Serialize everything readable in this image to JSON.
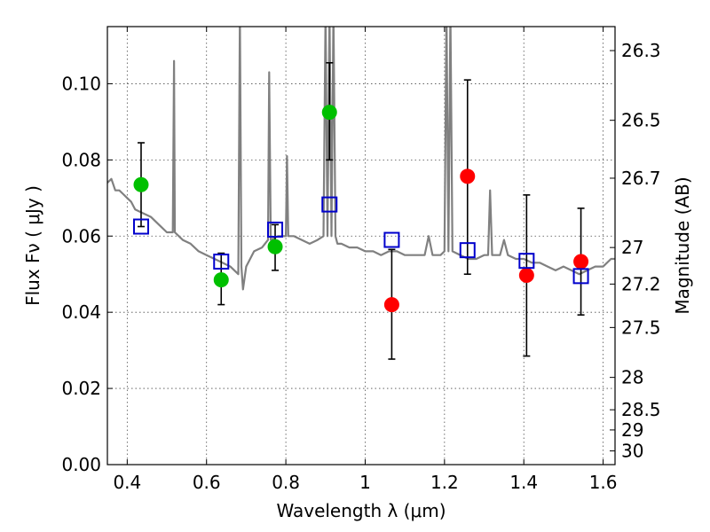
{
  "chart_data": {
    "type": "scatter",
    "title": "",
    "xlabel": "Wavelength  λ (μm)",
    "ylabel": "Flux  Fν  ( μJy )",
    "y2label": "Magnitude (AB)",
    "xlim": [
      0.35,
      1.63
    ],
    "ylim": [
      0.0,
      0.115
    ],
    "grid": true,
    "x_ticks": [
      0.4,
      0.6,
      0.8,
      1.0,
      1.2,
      1.4,
      1.6
    ],
    "x_tick_labels": [
      "0.4",
      "0.6",
      "0.8",
      "1",
      "1.2",
      "1.4",
      "1.6"
    ],
    "y_ticks": [
      0.0,
      0.02,
      0.04,
      0.06,
      0.08,
      0.1
    ],
    "y_tick_labels": [
      "0.00",
      "0.02",
      "0.04",
      "0.06",
      "0.08",
      "0.10"
    ],
    "y2_ticks": [
      {
        "label": "26.3",
        "flux": 0.1087
      },
      {
        "label": "26.5",
        "flux": 0.0904
      },
      {
        "label": "26.7",
        "flux": 0.0752
      },
      {
        "label": "27",
        "flux": 0.057
      },
      {
        "label": "27.2",
        "flux": 0.0474
      },
      {
        "label": "27.5",
        "flux": 0.036
      },
      {
        "label": "28",
        "flux": 0.0229
      },
      {
        "label": "28.5",
        "flux": 0.0144
      },
      {
        "label": "29",
        "flux": 0.0091
      },
      {
        "label": "30",
        "flux": 0.0036
      }
    ],
    "series": [
      {
        "marker": "circle",
        "color": "#00c000",
        "points": [
          {
            "x": 0.435,
            "y": 0.0735,
            "ylo": 0.0625,
            "yhi": 0.0845
          },
          {
            "x": 0.637,
            "y": 0.0485,
            "ylo": 0.042,
            "yhi": 0.0555
          },
          {
            "x": 0.773,
            "y": 0.0572,
            "ylo": 0.051,
            "yhi": 0.063
          },
          {
            "x": 0.91,
            "y": 0.0925,
            "ylo": 0.08,
            "yhi": 0.1055
          }
        ]
      },
      {
        "marker": "circle",
        "color": "#ff0000",
        "points": [
          {
            "x": 1.067,
            "y": 0.042,
            "ylo": 0.0277,
            "yhi": 0.0565
          },
          {
            "x": 1.258,
            "y": 0.0757,
            "ylo": 0.05,
            "yhi": 0.101
          },
          {
            "x": 1.407,
            "y": 0.0497,
            "ylo": 0.0285,
            "yhi": 0.0708
          },
          {
            "x": 1.544,
            "y": 0.0533,
            "ylo": 0.0393,
            "yhi": 0.0673
          }
        ]
      },
      {
        "marker": "open-square",
        "color": "#0000cc",
        "points": [
          {
            "x": 0.435,
            "y": 0.0625
          },
          {
            "x": 0.637,
            "y": 0.0533
          },
          {
            "x": 0.773,
            "y": 0.0617
          },
          {
            "x": 0.91,
            "y": 0.0683
          },
          {
            "x": 1.067,
            "y": 0.059
          },
          {
            "x": 1.258,
            "y": 0.0563
          },
          {
            "x": 1.407,
            "y": 0.0535
          },
          {
            "x": 1.544,
            "y": 0.0495
          }
        ]
      }
    ],
    "model_spectrum": {
      "color": "#808080",
      "x": [
        0.35,
        0.36,
        0.37,
        0.38,
        0.39,
        0.4,
        0.41,
        0.42,
        0.44,
        0.46,
        0.48,
        0.5,
        0.515,
        0.518,
        0.52,
        0.54,
        0.56,
        0.58,
        0.6,
        0.62,
        0.64,
        0.66,
        0.68,
        0.684,
        0.688,
        0.692,
        0.7,
        0.72,
        0.74,
        0.755,
        0.758,
        0.762,
        0.78,
        0.8,
        0.803,
        0.806,
        0.82,
        0.84,
        0.86,
        0.88,
        0.895,
        0.9,
        0.905,
        0.91,
        0.915,
        0.92,
        0.925,
        0.93,
        0.94,
        0.96,
        0.98,
        1.0,
        1.02,
        1.04,
        1.06,
        1.08,
        1.1,
        1.12,
        1.15,
        1.16,
        1.17,
        1.19,
        1.2,
        1.205,
        1.21,
        1.215,
        1.22,
        1.24,
        1.26,
        1.28,
        1.3,
        1.31,
        1.315,
        1.32,
        1.34,
        1.35,
        1.36,
        1.38,
        1.4,
        1.42,
        1.44,
        1.46,
        1.48,
        1.5,
        1.52,
        1.54,
        1.56,
        1.58,
        1.6,
        1.62,
        1.63
      ],
      "y": [
        0.074,
        0.075,
        0.072,
        0.072,
        0.071,
        0.07,
        0.069,
        0.067,
        0.066,
        0.065,
        0.063,
        0.061,
        0.061,
        0.106,
        0.061,
        0.059,
        0.058,
        0.056,
        0.055,
        0.054,
        0.053,
        0.052,
        0.05,
        0.119,
        0.052,
        0.046,
        0.052,
        0.056,
        0.057,
        0.059,
        0.103,
        0.059,
        0.06,
        0.06,
        0.081,
        0.06,
        0.06,
        0.059,
        0.058,
        0.059,
        0.06,
        0.119,
        0.06,
        0.119,
        0.06,
        0.119,
        0.06,
        0.058,
        0.058,
        0.057,
        0.057,
        0.056,
        0.056,
        0.055,
        0.056,
        0.056,
        0.055,
        0.055,
        0.055,
        0.06,
        0.055,
        0.055,
        0.056,
        0.119,
        0.056,
        0.119,
        0.056,
        0.055,
        0.054,
        0.054,
        0.055,
        0.055,
        0.072,
        0.055,
        0.055,
        0.059,
        0.055,
        0.054,
        0.054,
        0.053,
        0.053,
        0.052,
        0.051,
        0.052,
        0.051,
        0.05,
        0.051,
        0.052,
        0.052,
        0.054,
        0.054
      ]
    }
  }
}
